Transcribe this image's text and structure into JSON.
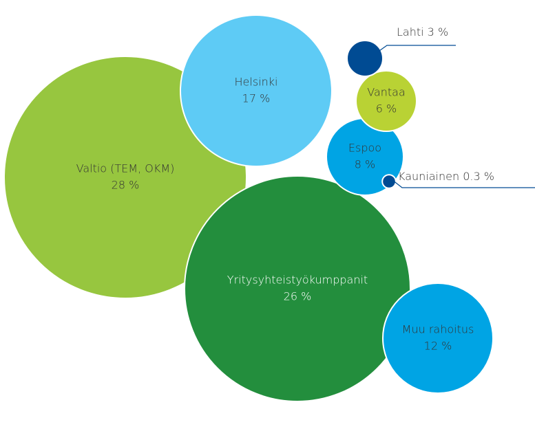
{
  "chart_data": {
    "type": "bubble",
    "categories": [
      "Valtio (TEM, OKM)",
      "Helsinki",
      "Lahti",
      "Vantaa",
      "Espoo",
      "Kauniainen",
      "Yritysyhteistyökumppanit",
      "Muu rahoitus"
    ],
    "values": [
      28,
      17,
      3,
      6,
      8,
      0.3,
      26,
      12
    ],
    "value_labels": [
      "28 %",
      "17 %",
      "3 %",
      "6 %",
      "8 %",
      "0.3 %",
      "26 %",
      "12 %"
    ],
    "colors": [
      "#97c63f",
      "#5ecbf5",
      "#004b93",
      "#b9d234",
      "#00a4e4",
      "#004b93",
      "#238e3d",
      "#00a4e4"
    ]
  }
}
